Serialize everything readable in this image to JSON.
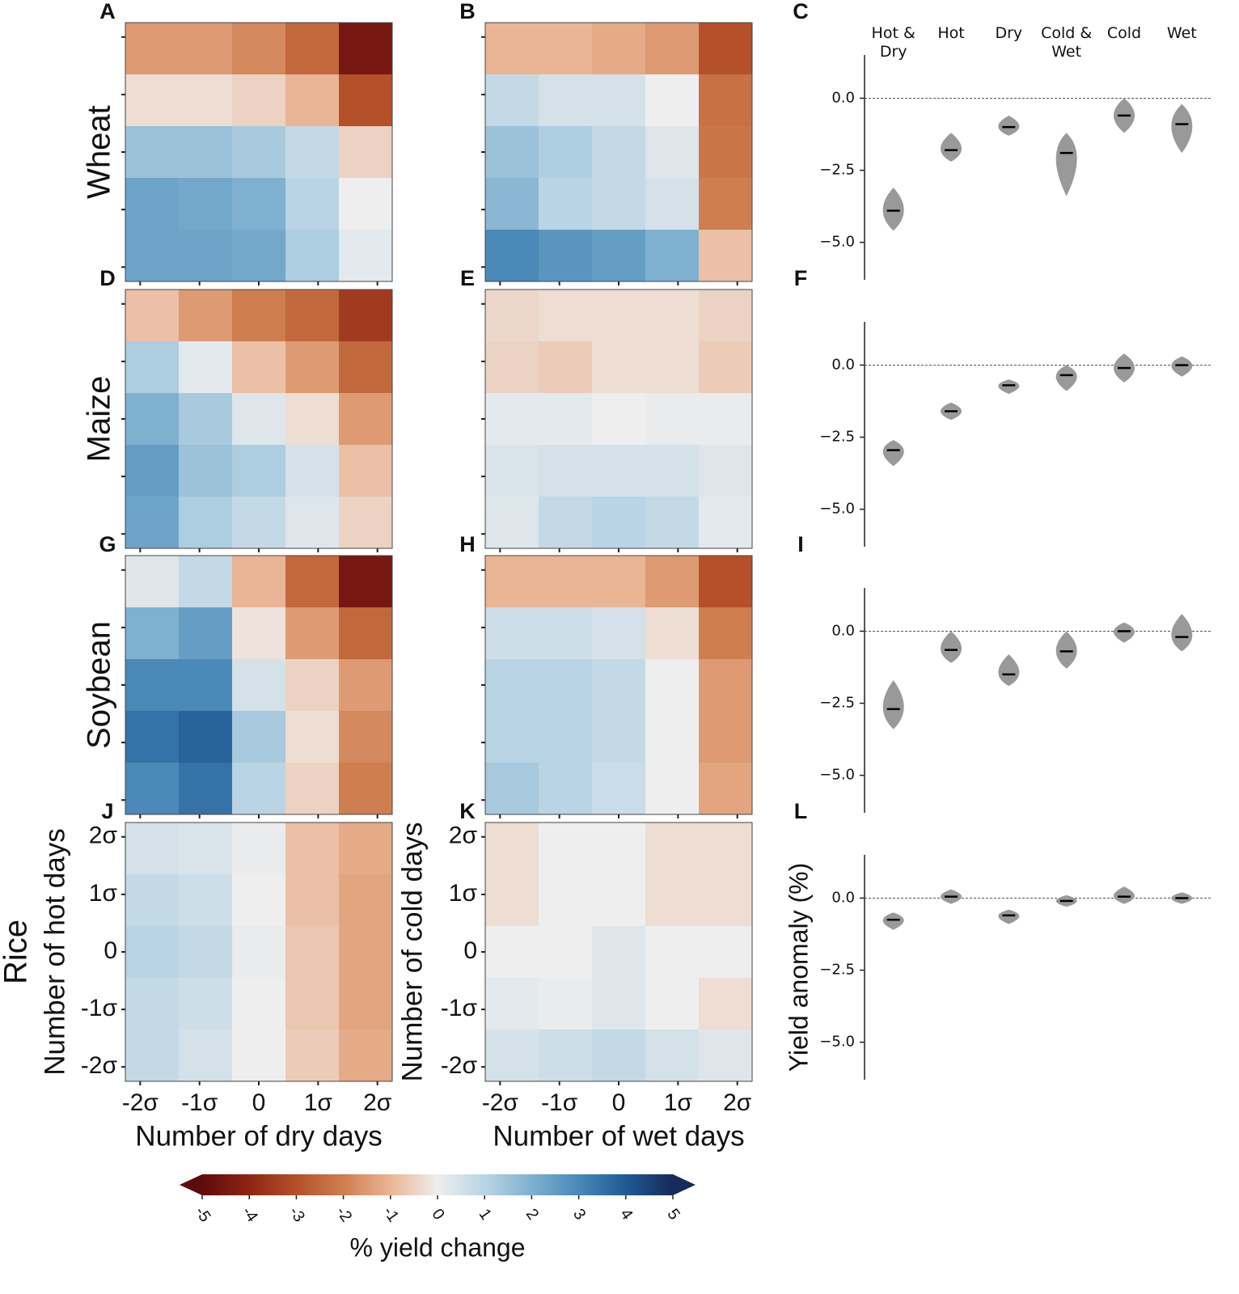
{
  "chart_data": [
    {
      "type": "heatmap",
      "panel": "A",
      "row_label": "Wheat",
      "x": [
        -1.8,
        -0.9,
        0,
        0.9,
        1.8
      ],
      "y": [
        1.8,
        0.9,
        0,
        -0.9,
        -1.8
      ],
      "z": [
        [
          -1.5,
          -1.5,
          -1.8,
          -2.5,
          -4.5
        ],
        [
          -0.3,
          -0.3,
          -0.5,
          -1,
          -3
        ],
        [
          1.5,
          1.5,
          1.3,
          0.8,
          -0.5
        ],
        [
          2.3,
          2.2,
          2,
          1,
          0
        ],
        [
          2.3,
          2.3,
          2.2,
          1.2,
          0.2
        ]
      ],
      "xlim": [
        -2.25,
        2.25
      ],
      "ylim": [
        -2.25,
        2.25
      ],
      "xticks": [
        -2,
        -1,
        0,
        1,
        2
      ],
      "yticks": [
        -2,
        -1,
        0,
        1,
        2
      ]
    },
    {
      "type": "heatmap",
      "panel": "B",
      "x": [
        -1.8,
        -0.9,
        0,
        0.9,
        1.8
      ],
      "y": [
        1.8,
        0.9,
        0,
        -0.9,
        -1.8
      ],
      "z": [
        [
          -1,
          -1,
          -1.2,
          -1.5,
          -3
        ],
        [
          0.8,
          0.5,
          0.5,
          0,
          -2.3
        ],
        [
          1.5,
          1.2,
          0.8,
          0.3,
          -2.2
        ],
        [
          1.8,
          1,
          0.8,
          0.5,
          -2
        ],
        [
          3,
          2.7,
          2.5,
          2,
          -0.8
        ]
      ],
      "xlim": [
        -2.25,
        2.25
      ],
      "ylim": [
        -2.25,
        2.25
      ],
      "xticks": [
        -2,
        -1,
        0,
        1,
        2
      ],
      "yticks": [
        -2,
        -1,
        0,
        1,
        2
      ]
    },
    {
      "type": "violin",
      "panel": "C",
      "categories": [
        "Hot & Dry",
        "Hot",
        "Dry",
        "Cold & Wet",
        "Cold",
        "Wet"
      ],
      "values": [
        -3.9,
        -1.8,
        -1.0,
        -1.9,
        -0.6,
        -0.9
      ],
      "min": [
        -4.6,
        -2.2,
        -1.3,
        -3.4,
        -1.2,
        -1.9
      ],
      "max": [
        -3.1,
        -1.2,
        -0.6,
        -1.2,
        0.0,
        -0.2
      ],
      "color": "#999999",
      "ylim": [
        -6.3,
        1.5
      ],
      "yticks": [
        {
          "value": 0,
          "label": "0.0"
        },
        {
          "value": -2.5,
          "label": "−2.5"
        },
        {
          "value": -5,
          "label": "−5.0"
        }
      ],
      "hline": 0
    },
    {
      "type": "heatmap",
      "panel": "D",
      "row_label": "Maize",
      "x": [
        -1.8,
        -0.9,
        0,
        0.9,
        1.8
      ],
      "y": [
        1.8,
        0.9,
        0,
        -0.9,
        -1.8
      ],
      "z": [
        [
          -0.8,
          -1.5,
          -2,
          -2.5,
          -3.5
        ],
        [
          1.2,
          0.2,
          -0.8,
          -1.5,
          -2.5
        ],
        [
          2,
          1.3,
          0.3,
          -0.3,
          -1.5
        ],
        [
          2.5,
          1.5,
          1.2,
          0.5,
          -0.8
        ],
        [
          2.3,
          1.2,
          0.8,
          0.3,
          -0.5
        ]
      ],
      "xlim": [
        -2.25,
        2.25
      ],
      "ylim": [
        -2.25,
        2.25
      ],
      "xticks": [
        -2,
        -1,
        0,
        1,
        2
      ],
      "yticks": [
        -2,
        -1,
        0,
        1,
        2
      ]
    },
    {
      "type": "heatmap",
      "panel": "E",
      "x": [
        -1.8,
        -0.9,
        0,
        0.9,
        1.8
      ],
      "y": [
        1.8,
        0.9,
        0,
        -0.9,
        -1.8
      ],
      "z": [
        [
          -0.4,
          -0.3,
          -0.3,
          -0.3,
          -0.5
        ],
        [
          -0.5,
          -0.6,
          -0.3,
          -0.3,
          -0.6
        ],
        [
          0.2,
          0.2,
          0,
          0.1,
          0.1
        ],
        [
          0.4,
          0.5,
          0.5,
          0.5,
          0.3
        ],
        [
          0.3,
          0.8,
          1,
          0.8,
          0.2
        ]
      ],
      "xlim": [
        -2.25,
        2.25
      ],
      "ylim": [
        -2.25,
        2.25
      ],
      "xticks": [
        -2,
        -1,
        0,
        1,
        2
      ],
      "yticks": [
        -2,
        -1,
        0,
        1,
        2
      ]
    },
    {
      "type": "violin",
      "panel": "F",
      "values": [
        -2.95,
        -1.6,
        -0.7,
        -0.35,
        -0.1,
        0.0
      ],
      "min": [
        -3.5,
        -1.9,
        -1.0,
        -0.9,
        -0.6,
        -0.4
      ],
      "max": [
        -2.6,
        -1.3,
        -0.5,
        0.0,
        0.4,
        0.3
      ],
      "color": "#999999",
      "ylim": [
        -6.3,
        1.5
      ],
      "yticks": [
        {
          "value": 0,
          "label": "0.0"
        },
        {
          "value": -2.5,
          "label": "−2.5"
        },
        {
          "value": -5,
          "label": "−5.0"
        }
      ],
      "hline": 0
    },
    {
      "type": "heatmap",
      "panel": "G",
      "row_label": "Soybean",
      "x": [
        -1.8,
        -0.9,
        0,
        0.9,
        1.8
      ],
      "y": [
        1.8,
        0.9,
        0,
        -0.9,
        -1.8
      ],
      "z": [
        [
          0.3,
          0.8,
          -1,
          -2.5,
          -4.5
        ],
        [
          2,
          2.5,
          -0.2,
          -1.5,
          -2.5
        ],
        [
          3,
          3,
          0.5,
          -0.5,
          -1.5
        ],
        [
          3.5,
          3.8,
          1.3,
          -0.3,
          -1.8
        ],
        [
          3,
          3.5,
          1,
          -0.5,
          -2
        ]
      ],
      "xlim": [
        -2.25,
        2.25
      ],
      "ylim": [
        -2.25,
        2.25
      ],
      "xticks": [
        -2,
        -1,
        0,
        1,
        2
      ],
      "yticks": [
        -2,
        -1,
        0,
        1,
        2
      ]
    },
    {
      "type": "heatmap",
      "panel": "H",
      "x": [
        -1.8,
        -0.9,
        0,
        0.9,
        1.8
      ],
      "y": [
        1.8,
        0.9,
        0,
        -0.9,
        -1.8
      ],
      "z": [
        [
          -1,
          -1,
          -1,
          -1.5,
          -3
        ],
        [
          0.6,
          0.6,
          0.5,
          -0.3,
          -2
        ],
        [
          1,
          1,
          0.8,
          0,
          -1.5
        ],
        [
          1,
          1,
          0.8,
          0,
          -1.5
        ],
        [
          1.3,
          1,
          0.7,
          0,
          -1.3
        ]
      ],
      "xlim": [
        -2.25,
        2.25
      ],
      "ylim": [
        -2.25,
        2.25
      ],
      "xticks": [
        -2,
        -1,
        0,
        1,
        2
      ],
      "yticks": [
        -2,
        -1,
        0,
        1,
        2
      ]
    },
    {
      "type": "violin",
      "panel": "I",
      "values": [
        -2.7,
        -0.65,
        -1.5,
        -0.7,
        0.0,
        -0.2
      ],
      "min": [
        -3.4,
        -1.1,
        -1.9,
        -1.3,
        -0.4,
        -0.7
      ],
      "max": [
        -1.7,
        0.0,
        -0.8,
        0.0,
        0.3,
        0.6
      ],
      "color": "#999999",
      "ylim": [
        -6.3,
        1.5
      ],
      "yticks": [
        {
          "value": 0,
          "label": "0.0"
        },
        {
          "value": -2.5,
          "label": "−2.5"
        },
        {
          "value": -5,
          "label": "−5.0"
        }
      ],
      "hline": 0
    },
    {
      "type": "heatmap",
      "panel": "J",
      "row_label": "Rice",
      "xlabel": "Number of dry days",
      "ylabel": "Number of hot days",
      "x": [
        -1.8,
        -0.9,
        0,
        0.9,
        1.8
      ],
      "y": [
        1.8,
        0.9,
        0,
        -0.9,
        -1.8
      ],
      "z": [
        [
          0.5,
          0.4,
          0.1,
          -0.8,
          -1.2
        ],
        [
          0.8,
          0.6,
          0,
          -0.8,
          -1.3
        ],
        [
          1,
          0.8,
          0.1,
          -0.7,
          -1.3
        ],
        [
          0.8,
          0.6,
          0,
          -0.7,
          -1.3
        ],
        [
          0.8,
          0.5,
          0,
          -0.6,
          -1.2
        ]
      ],
      "xlim": [
        -2.25,
        2.25
      ],
      "ylim": [
        -2.25,
        2.25
      ],
      "xticks": [
        {
          "value": -2,
          "label": "-2σ"
        },
        {
          "value": -1,
          "label": "-1σ"
        },
        0,
        {
          "value": 1,
          "label": "1σ"
        },
        {
          "value": 2,
          "label": "2σ"
        }
      ],
      "yticks": [
        {
          "value": -2,
          "label": "-2σ"
        },
        {
          "value": -1,
          "label": "-1σ"
        },
        0,
        {
          "value": 1,
          "label": "1σ"
        },
        {
          "value": 2,
          "label": "2σ"
        }
      ]
    },
    {
      "type": "heatmap",
      "panel": "K",
      "xlabel": "Number of wet days",
      "ylabel": "Number of cold days",
      "x": [
        -1.8,
        -0.9,
        0,
        0.9,
        1.8
      ],
      "y": [
        1.8,
        0.9,
        0,
        -0.9,
        -1.8
      ],
      "z": [
        [
          -0.3,
          0,
          0,
          -0.3,
          -0.3
        ],
        [
          -0.3,
          0,
          0,
          -0.3,
          -0.3
        ],
        [
          0,
          0,
          0.3,
          0,
          0
        ],
        [
          0.2,
          0.1,
          0.3,
          0,
          -0.3
        ],
        [
          0.5,
          0.6,
          0.8,
          0.5,
          0.3
        ]
      ],
      "xlim": [
        -2.25,
        2.25
      ],
      "ylim": [
        -2.25,
        2.25
      ],
      "xticks": [
        {
          "value": -2,
          "label": "-2σ"
        },
        {
          "value": -1,
          "label": "-1σ"
        },
        0,
        {
          "value": 1,
          "label": "1σ"
        },
        {
          "value": 2,
          "label": "2σ"
        }
      ],
      "yticks": [
        {
          "value": -2,
          "label": "-2σ"
        },
        {
          "value": -1,
          "label": "-1σ"
        },
        0,
        {
          "value": 1,
          "label": "1σ"
        },
        {
          "value": 2,
          "label": "2σ"
        }
      ]
    },
    {
      "type": "violin",
      "panel": "L",
      "ylabel": "Yield anomaly (%)",
      "values": [
        -0.75,
        0.05,
        -0.6,
        -0.1,
        0.05,
        0.0
      ],
      "min": [
        -1.1,
        -0.2,
        -0.9,
        -0.3,
        -0.2,
        -0.2
      ],
      "max": [
        -0.5,
        0.3,
        -0.4,
        0.1,
        0.4,
        0.2
      ],
      "color": "#999999",
      "ylim": [
        -6.3,
        1.5
      ],
      "yticks": [
        {
          "value": 0,
          "label": "0.0"
        },
        {
          "value": -2.5,
          "label": "−2.5"
        },
        {
          "value": -5,
          "label": "−5.0"
        }
      ],
      "hline": 0
    },
    {
      "type": "colorbar",
      "label": "% yield change",
      "xlim": [
        -5,
        5
      ],
      "xticks": [
        -5,
        -4,
        -3,
        -2,
        -1,
        0,
        1,
        2,
        3,
        4,
        5
      ],
      "colors": [
        "#5e0b0e",
        "#8e2514",
        "#b4512a",
        "#cf7e50",
        "#eab595",
        "#eeeeee",
        "#b9d4e4",
        "#7fb0d0",
        "#4a89b8",
        "#1f5a95",
        "#172a5c"
      ],
      "extend": "both"
    }
  ]
}
